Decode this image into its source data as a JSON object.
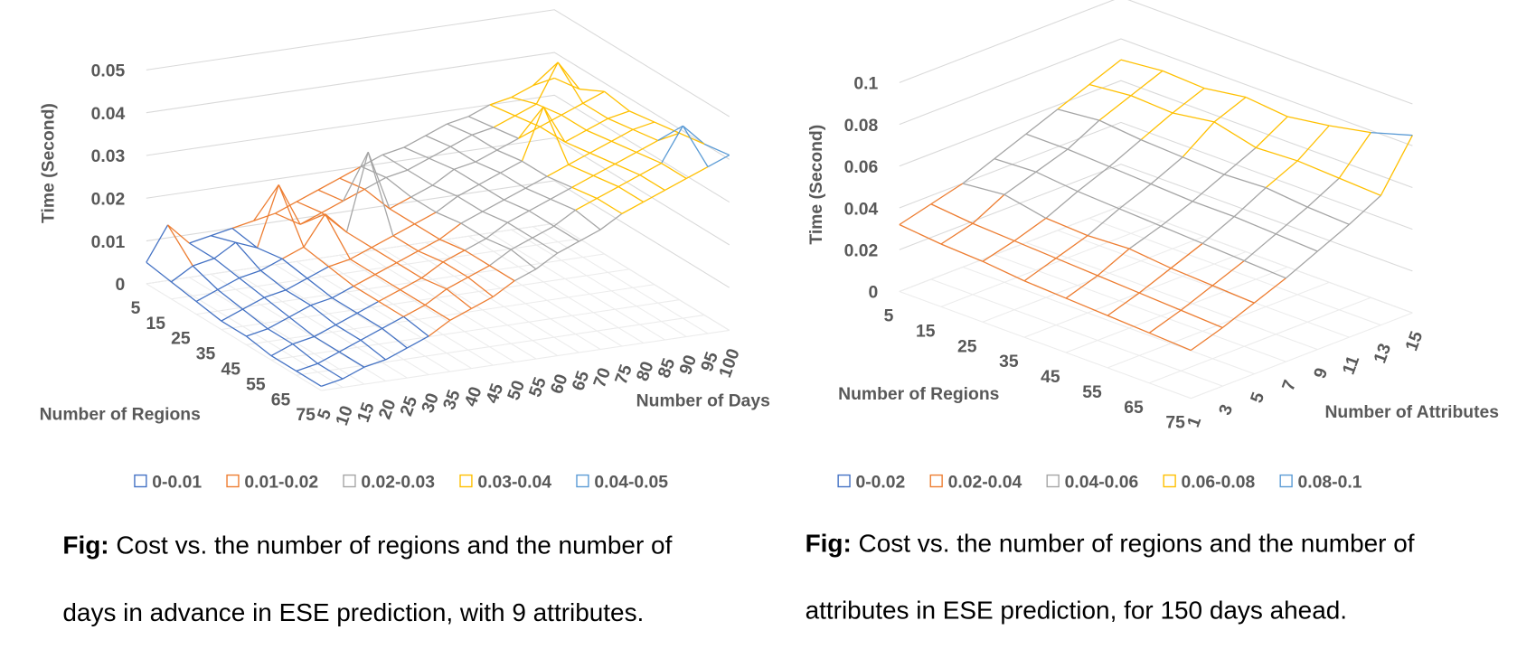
{
  "chart_data": [
    {
      "type": "surface3d",
      "xlabel": "Number of Regions",
      "ylabel": "Number of Days",
      "zlabel": "Time (Second)",
      "x": [
        5,
        15,
        25,
        35,
        45,
        55,
        65,
        75
      ],
      "y": [
        5,
        10,
        15,
        20,
        25,
        30,
        35,
        40,
        45,
        50,
        55,
        60,
        65,
        70,
        75,
        80,
        85,
        90,
        95,
        100
      ],
      "values": [
        [
          0.005,
          0.013,
          0.008,
          0.009,
          0.01,
          0.011,
          0.012,
          0.014,
          0.016,
          0.018,
          0.02,
          0.022,
          0.023,
          0.025,
          0.027,
          0.028,
          0.03,
          0.031,
          0.033,
          0.034
        ],
        [
          0.004,
          0.007,
          0.008,
          0.011,
          0.009,
          0.023,
          0.013,
          0.015,
          0.017,
          0.019,
          0.021,
          0.022,
          0.024,
          0.026,
          0.028,
          0.029,
          0.031,
          0.033,
          0.042,
          0.035
        ],
        [
          0.003,
          0.005,
          0.007,
          0.008,
          0.01,
          0.012,
          0.019,
          0.014,
          0.032,
          0.018,
          0.02,
          0.022,
          0.025,
          0.026,
          0.028,
          0.03,
          0.032,
          0.034,
          0.036,
          0.038
        ],
        [
          0.002,
          0.004,
          0.006,
          0.007,
          0.009,
          0.011,
          0.012,
          0.014,
          0.016,
          0.018,
          0.02,
          0.023,
          0.025,
          0.027,
          0.029,
          0.041,
          0.032,
          0.034,
          0.036,
          0.037
        ],
        [
          0.002,
          0.003,
          0.005,
          0.007,
          0.008,
          0.01,
          0.012,
          0.014,
          0.016,
          0.018,
          0.021,
          0.023,
          0.025,
          0.027,
          0.029,
          0.031,
          0.033,
          0.035,
          0.037,
          0.038
        ],
        [
          0.001,
          0.003,
          0.004,
          0.006,
          0.008,
          0.01,
          0.012,
          0.014,
          0.017,
          0.019,
          0.021,
          0.024,
          0.026,
          0.028,
          0.03,
          0.032,
          0.034,
          0.036,
          0.038,
          0.039
        ],
        [
          0.001,
          0.002,
          0.004,
          0.006,
          0.008,
          0.01,
          0.012,
          0.015,
          0.017,
          0.019,
          0.022,
          0.024,
          0.026,
          0.029,
          0.031,
          0.033,
          0.035,
          0.037,
          0.045,
          0.04
        ],
        [
          0.001,
          0.002,
          0.004,
          0.005,
          0.007,
          0.009,
          0.012,
          0.014,
          0.016,
          0.019,
          0.021,
          0.024,
          0.026,
          0.028,
          0.031,
          0.033,
          0.035,
          0.037,
          0.039,
          0.041
        ]
      ],
      "zlim": [
        0,
        0.05
      ],
      "zticks": [
        0,
        0.01,
        0.02,
        0.03,
        0.04,
        0.05
      ],
      "series": [
        {
          "name": "0-0.01",
          "color": "#4472c4"
        },
        {
          "name": "0.01-0.02",
          "color": "#ed7d31"
        },
        {
          "name": "0.02-0.03",
          "color": "#a5a5a5"
        },
        {
          "name": "0.03-0.04",
          "color": "#ffc000"
        },
        {
          "name": "0.04-0.05",
          "color": "#5b9bd5"
        }
      ],
      "caption": {
        "label": "Fig:",
        "lines": [
          "Cost vs. the number of regions and the number of",
          "days in advance in ESE prediction, with 9 attributes."
        ]
      }
    },
    {
      "type": "surface3d",
      "xlabel": "Number of Regions",
      "ylabel": "Number of Attributes",
      "zlabel": "Time (Second)",
      "x": [
        5,
        15,
        25,
        35,
        45,
        55,
        65,
        75
      ],
      "y": [
        1,
        3,
        5,
        7,
        9,
        11,
        13,
        15
      ],
      "values": [
        [
          0.032,
          0.036,
          0.04,
          0.046,
          0.052,
          0.058,
          0.064,
          0.07
        ],
        [
          0.03,
          0.034,
          0.042,
          0.047,
          0.052,
          0.06,
          0.066,
          0.072
        ],
        [
          0.029,
          0.033,
          0.038,
          0.045,
          0.051,
          0.058,
          0.065,
          0.071
        ],
        [
          0.027,
          0.032,
          0.037,
          0.044,
          0.05,
          0.057,
          0.068,
          0.074
        ],
        [
          0.026,
          0.031,
          0.038,
          0.043,
          0.049,
          0.056,
          0.063,
          0.072
        ],
        [
          0.025,
          0.03,
          0.036,
          0.042,
          0.049,
          0.057,
          0.064,
          0.075
        ],
        [
          0.024,
          0.029,
          0.035,
          0.041,
          0.048,
          0.055,
          0.063,
          0.079
        ],
        [
          0.023,
          0.028,
          0.034,
          0.04,
          0.047,
          0.054,
          0.062,
          0.085
        ]
      ],
      "zlim": [
        0,
        0.1
      ],
      "zticks": [
        0,
        0.02,
        0.04,
        0.06,
        0.08,
        0.1
      ],
      "series": [
        {
          "name": "0-0.02",
          "color": "#4472c4"
        },
        {
          "name": "0.02-0.04",
          "color": "#ed7d31"
        },
        {
          "name": "0.04-0.06",
          "color": "#a5a5a5"
        },
        {
          "name": "0.06-0.08",
          "color": "#ffc000"
        },
        {
          "name": "0.08-0.1",
          "color": "#5b9bd5"
        }
      ],
      "caption": {
        "label": "Fig:",
        "lines": [
          "Cost vs. the number of regions and the number of",
          "attributes in ESE prediction, for 150 days ahead."
        ]
      }
    }
  ]
}
